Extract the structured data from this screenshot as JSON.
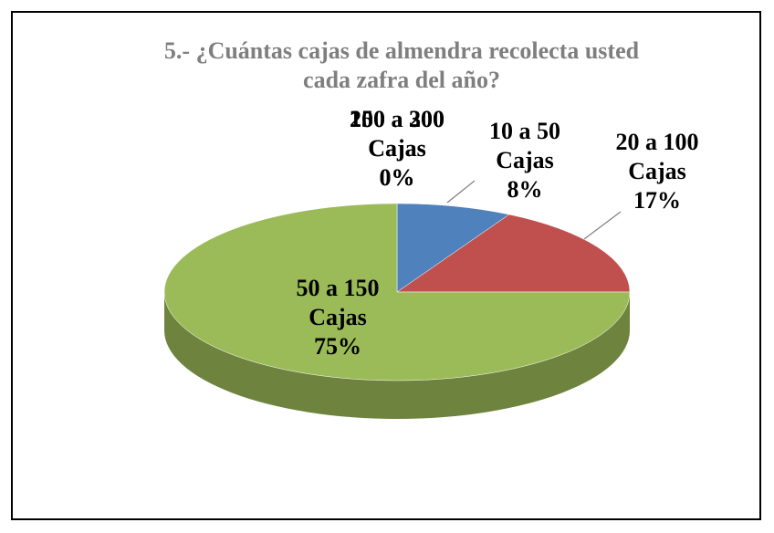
{
  "chart_data": {
    "type": "pie",
    "title": "5.- ¿Cuántas cajas de almendra recolecta usted cada zafra del año?",
    "categories": [
      "10 a 50 Cajas",
      "20 a 100 Cajas",
      "50 a 150 Cajas",
      "150 a 200 Cajas",
      "200 a 300 Cajas"
    ],
    "values": [
      8,
      17,
      75,
      0,
      0
    ],
    "value_labels": [
      "8%",
      "17%",
      "75%",
      "0%",
      "0%"
    ],
    "colors": [
      "#4f81bd",
      "#c0504d",
      "#9bbb59",
      "#8064a2",
      "#4bacc6"
    ],
    "three_d": true
  }
}
